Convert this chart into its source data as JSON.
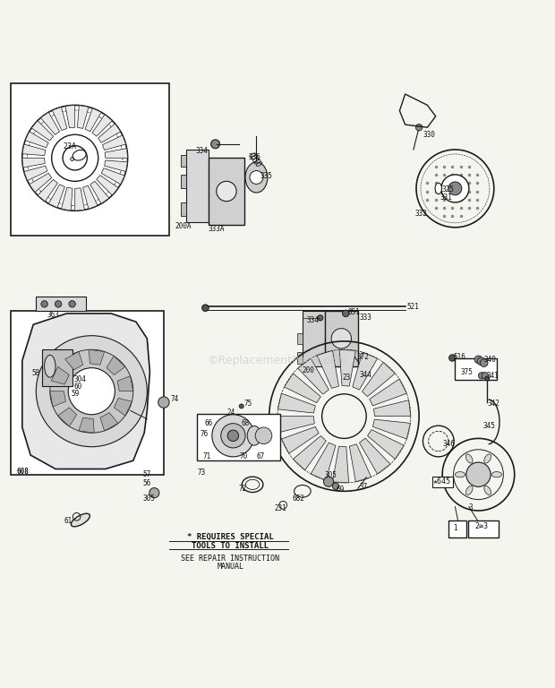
{
  "bg_color": "#f5f5f0",
  "line_color": "#1a1a1a",
  "text_color": "#111111",
  "watermark": "©ReplacementParts.com",
  "footer_line1": "* REQUIRES SPECIAL",
  "footer_line2": "TOOLS TO INSTALL",
  "footer_line3": "SEE REPAIR INSTRUCTION",
  "footer_line4": "MANUAL"
}
